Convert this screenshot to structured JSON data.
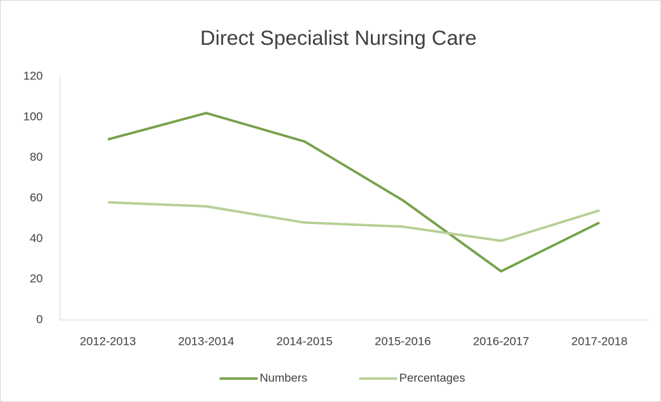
{
  "chart_data": {
    "type": "line",
    "title": "Direct Specialist Nursing Care",
    "categories": [
      "2012-2013",
      "2013-2014",
      "2014-2015",
      "2015-2016",
      "2016-2017",
      "2017-2018"
    ],
    "series": [
      {
        "name": "Numbers",
        "color": "#77a04a",
        "values": [
          89,
          102,
          88,
          59,
          24,
          48
        ]
      },
      {
        "name": "Percentages",
        "color": "#b5cf94",
        "values": [
          58,
          56,
          48,
          46,
          39,
          54
        ]
      }
    ],
    "ylim": [
      0,
      120
    ],
    "yticks": [
      0,
      20,
      40,
      60,
      80,
      100,
      120
    ],
    "grid": false,
    "legend": "bottom"
  }
}
